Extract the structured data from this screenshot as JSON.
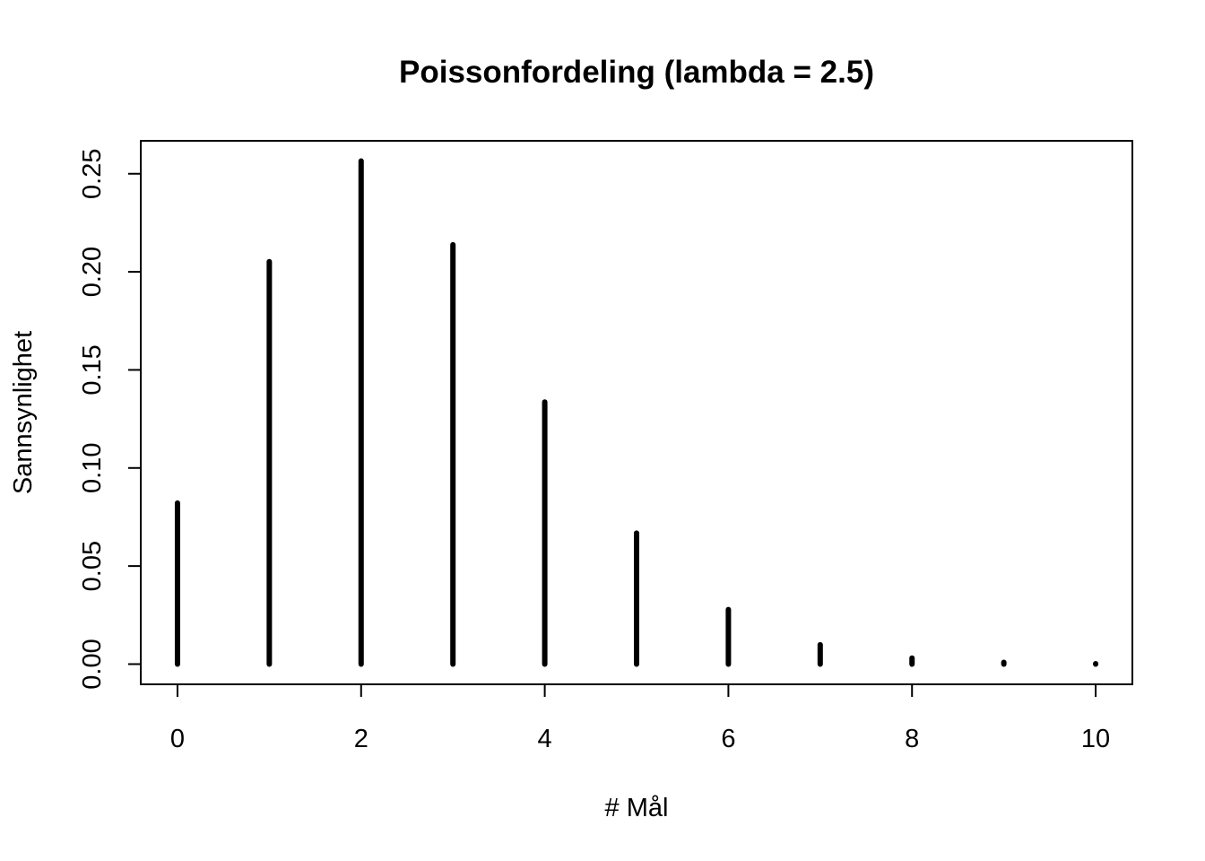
{
  "chart_data": {
    "type": "bar",
    "title": "Poissonfordeling (lambda = 2.5)",
    "xlabel": "# Mål",
    "ylabel": "Sannsynlighet",
    "x": [
      0,
      1,
      2,
      3,
      4,
      5,
      6,
      7,
      8,
      9,
      10
    ],
    "values": [
      0.0821,
      0.2052,
      0.2565,
      0.2138,
      0.1336,
      0.0668,
      0.0278,
      0.0099,
      0.0031,
      0.0009,
      0.0002
    ],
    "xlim": [
      -0.4,
      10.4
    ],
    "ylim": [
      -0.0103,
      0.2668
    ],
    "x_ticks": [
      0,
      2,
      4,
      6,
      8,
      10
    ],
    "x_tick_labels": [
      "0",
      "2",
      "4",
      "6",
      "8",
      "10"
    ],
    "y_ticks": [
      0,
      0.05,
      0.1,
      0.15,
      0.2,
      0.25
    ],
    "y_tick_labels": [
      "0.00",
      "0.05",
      "0.10",
      "0.15",
      "0.20",
      "0.25"
    ],
    "grid": false,
    "color": "#000000"
  }
}
